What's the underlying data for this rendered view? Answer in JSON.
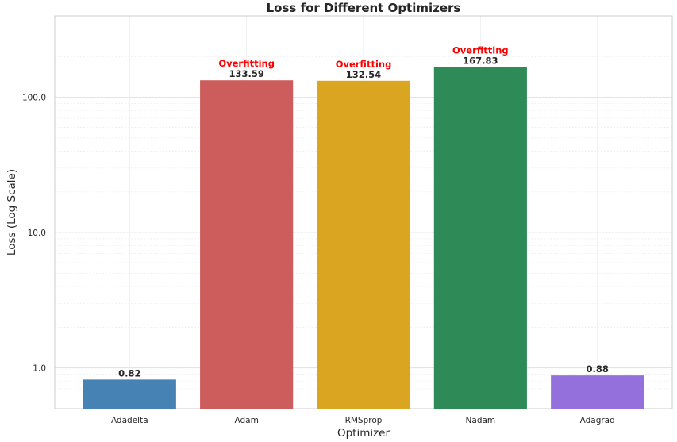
{
  "chart_data": {
    "type": "bar",
    "title": "Loss for Different Optimizers",
    "xlabel": "Optimizer",
    "ylabel": "Loss (Log Scale)",
    "yscale": "log",
    "ylim": [
      0.5,
      400
    ],
    "yticks": [
      1.0,
      10.0,
      100.0
    ],
    "ytick_labels": [
      "1.0",
      "10.0",
      "100.0"
    ],
    "grid": true,
    "categories": [
      "Adadelta",
      "Adam",
      "RMSprop",
      "Nadam",
      "Adagrad"
    ],
    "values": [
      0.82,
      133.59,
      132.54,
      167.83,
      0.88
    ],
    "value_labels": [
      "0.82",
      "133.59",
      "132.54",
      "167.83",
      "0.88"
    ],
    "annotations": [
      "",
      "Overfitting",
      "Overfitting",
      "Overfitting",
      ""
    ],
    "colors": [
      "#4682b4",
      "#cd5c5c",
      "#daa520",
      "#2e8b57",
      "#9370db"
    ]
  }
}
